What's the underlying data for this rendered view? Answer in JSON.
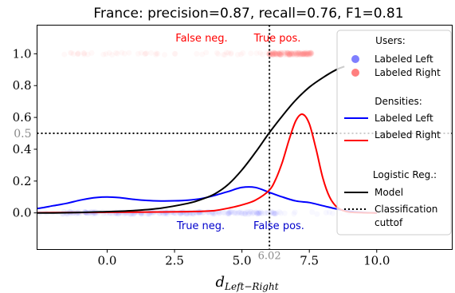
{
  "chart_data": {
    "type": "line",
    "title": "France: precision=0.87, recall=0.76, F1=0.81",
    "xlabel": "d",
    "xlabel_sub": "Left−Right",
    "xlim": [
      -2.6,
      12.8
    ],
    "ylim": [
      -0.23,
      1.18
    ],
    "x_ticks": [
      0.0,
      2.5,
      5.0,
      7.5,
      10.0
    ],
    "x_tick_labels": [
      "0.0",
      "2.5",
      "5.0",
      "7.5",
      "10.0"
    ],
    "y_ticks": [
      0.0,
      0.2,
      0.4,
      0.6,
      0.8,
      1.0
    ],
    "y_tick_labels": [
      "0.0",
      "0.2",
      "0.4",
      "0.6",
      "0.8",
      "1.0"
    ],
    "threshold_x": 6.02,
    "threshold_x_label": "6.02",
    "threshold_y": 0.5,
    "threshold_y_label": "0.5",
    "quadrant_labels": {
      "false_neg": "False neg.",
      "true_pos": "True pos.",
      "true_neg": "True neg.",
      "false_pos": "False pos."
    },
    "series": [
      {
        "name": "Labeled Left",
        "role": "density",
        "color": "#0000ff",
        "x": [
          -3.0,
          -2.5,
          -2.0,
          -1.5,
          -1.0,
          -0.5,
          0.0,
          0.5,
          1.0,
          1.5,
          2.0,
          2.5,
          3.0,
          3.5,
          4.0,
          4.5,
          5.0,
          5.5,
          6.0,
          6.5,
          7.0,
          7.5,
          8.0,
          8.5,
          9.0,
          9.5,
          10.0
        ],
        "y": [
          0.02,
          0.03,
          0.045,
          0.06,
          0.08,
          0.095,
          0.1,
          0.095,
          0.085,
          0.078,
          0.075,
          0.076,
          0.08,
          0.09,
          0.11,
          0.135,
          0.16,
          0.16,
          0.13,
          0.1,
          0.075,
          0.065,
          0.045,
          0.025,
          0.01,
          0.003,
          0.0
        ]
      },
      {
        "name": "Labeled Right",
        "role": "density",
        "color": "#ff0000",
        "x": [
          -3.0,
          -2.0,
          -1.0,
          0.0,
          1.0,
          2.0,
          3.0,
          3.5,
          4.0,
          4.5,
          5.0,
          5.5,
          6.0,
          6.25,
          6.5,
          6.75,
          7.0,
          7.25,
          7.5,
          7.75,
          8.0,
          8.25,
          8.5,
          8.75,
          9.0,
          9.5,
          10.0
        ],
        "y": [
          0.0,
          0.002,
          0.003,
          0.004,
          0.005,
          0.006,
          0.008,
          0.01,
          0.015,
          0.03,
          0.05,
          0.08,
          0.14,
          0.21,
          0.32,
          0.46,
          0.58,
          0.62,
          0.56,
          0.4,
          0.22,
          0.1,
          0.04,
          0.015,
          0.005,
          0.001,
          0.0
        ]
      },
      {
        "name": "Model",
        "role": "logistic",
        "color": "#000000",
        "x": [
          -3.0,
          -2.0,
          -1.0,
          0.0,
          1.0,
          2.0,
          3.0,
          3.5,
          4.0,
          4.5,
          5.0,
          5.5,
          6.0,
          6.5,
          7.0,
          7.5,
          8.0,
          8.5,
          8.8
        ],
        "y": [
          0.0,
          0.0,
          0.003,
          0.008,
          0.015,
          0.03,
          0.06,
          0.085,
          0.12,
          0.18,
          0.27,
          0.38,
          0.5,
          0.61,
          0.71,
          0.79,
          0.85,
          0.9,
          0.92
        ]
      }
    ],
    "users": {
      "labeled_left": {
        "name": "Labeled Left",
        "color": "#7f7fff",
        "y": 0.0,
        "x_range": [
          -2.6,
          9.5
        ],
        "dense_range": [
          -1.5,
          6.5
        ]
      },
      "labeled_right": {
        "name": "Labeled Right",
        "color": "#ff7f7f",
        "y": 1.0,
        "x_range": [
          -2.0,
          7.6
        ],
        "dense_range": [
          6.0,
          7.6
        ]
      }
    },
    "legend": {
      "placement": "right",
      "users_title": "Users:",
      "users_left": "Labeled Left",
      "users_right": "Labeled Right",
      "densities_title": "Densities:",
      "densities_left": "Labeled Left",
      "densities_right": "Labeled Right",
      "logistic_title": "Logistic Reg.:",
      "model": "Model",
      "cutoff_line1": "Classification",
      "cutoff_line2": "cuttof"
    },
    "grid": false
  }
}
